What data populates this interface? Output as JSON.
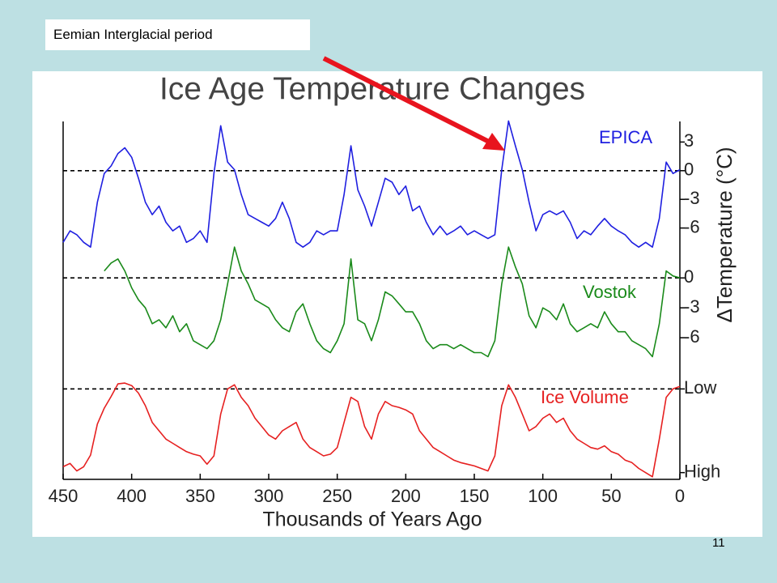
{
  "annotation": "Eemian Interglacial period",
  "page_number": "11",
  "chart_data": [
    {
      "type": "line",
      "title": "Ice Age Temperature Changes",
      "ylabel": "ΔTemperature (°C)",
      "x": [
        450,
        445,
        440,
        435,
        430,
        425,
        420,
        415,
        410,
        405,
        400,
        395,
        390,
        385,
        380,
        375,
        370,
        365,
        360,
        355,
        350,
        345,
        340,
        335,
        330,
        325,
        320,
        315,
        310,
        305,
        300,
        295,
        290,
        285,
        280,
        275,
        270,
        265,
        260,
        255,
        250,
        245,
        240,
        235,
        230,
        225,
        220,
        215,
        210,
        205,
        200,
        195,
        190,
        185,
        180,
        175,
        170,
        165,
        160,
        155,
        150,
        145,
        140,
        135,
        130,
        125,
        120,
        115,
        110,
        105,
        100,
        95,
        90,
        85,
        80,
        75,
        70,
        65,
        60,
        55,
        50,
        45,
        40,
        35,
        30,
        25,
        20,
        15,
        10,
        5,
        0
      ],
      "xlim": [
        450,
        0
      ],
      "ylim": [
        -9,
        6
      ],
      "yticks": [
        3,
        0,
        -3,
        -6
      ],
      "reference_line": 0,
      "series": [
        {
          "name": "EPICA",
          "color": "#1f1fe0",
          "values": [
            -7.5,
            -6.3,
            -6.7,
            -7.5,
            -8,
            -3.3,
            -0.3,
            0.5,
            1.8,
            2.4,
            1.4,
            -0.8,
            -3.3,
            -4.6,
            -3.7,
            -5.4,
            -6.3,
            -5.8,
            -7.5,
            -7.1,
            -6.3,
            -7.5,
            -0.3,
            4.7,
            0.9,
            0.1,
            -2.5,
            -4.6,
            -5,
            -5.4,
            -5.8,
            -5,
            -3.3,
            -5,
            -7.5,
            -8,
            -7.5,
            -6.3,
            -6.7,
            -6.3,
            -6.3,
            -2.5,
            2.6,
            -2,
            -3.7,
            -5.8,
            -3.3,
            -0.8,
            -1.2,
            -2.5,
            -1.6,
            -4.2,
            -3.7,
            -5.4,
            -6.7,
            -5.8,
            -6.7,
            -6.3,
            -5.8,
            -6.7,
            -6.3,
            -6.7,
            -7.1,
            -6.7,
            0.1,
            5.2,
            2.6,
            0.1,
            -3.3,
            -6.3,
            -4.6,
            -4.2,
            -4.6,
            -4.2,
            -5.4,
            -7.1,
            -6.3,
            -6.7,
            -5.8,
            -5,
            -5.8,
            -6.3,
            -6.7,
            -7.5,
            -8,
            -7.5,
            -8,
            -5,
            0.9,
            -0.3,
            0.1
          ]
        }
      ]
    },
    {
      "type": "line",
      "x": [
        450,
        445,
        440,
        435,
        430,
        425,
        420,
        415,
        410,
        405,
        400,
        395,
        390,
        385,
        380,
        375,
        370,
        365,
        360,
        355,
        350,
        345,
        340,
        335,
        330,
        325,
        320,
        315,
        310,
        305,
        300,
        295,
        290,
        285,
        280,
        275,
        270,
        265,
        260,
        255,
        250,
        245,
        240,
        235,
        230,
        225,
        220,
        215,
        210,
        205,
        200,
        195,
        190,
        185,
        180,
        175,
        170,
        165,
        160,
        155,
        150,
        145,
        140,
        135,
        130,
        125,
        120,
        115,
        110,
        105,
        100,
        95,
        90,
        85,
        80,
        75,
        70,
        65,
        60,
        55,
        50,
        45,
        40,
        35,
        30,
        25,
        20,
        15,
        10,
        5,
        0
      ],
      "xlim": [
        450,
        0
      ],
      "ylim": [
        -9,
        4
      ],
      "yticks": [
        0,
        -3,
        -6
      ],
      "reference_line": 0,
      "series": [
        {
          "name": "Vostok",
          "color": "#1a8a1a",
          "values": [
            null,
            null,
            null,
            null,
            null,
            null,
            0.7,
            1.5,
            1.9,
            0.7,
            -1,
            -2.2,
            -3,
            -4.6,
            -4.2,
            -5,
            -3.8,
            -5.4,
            -4.6,
            -6.3,
            -6.7,
            -7.1,
            -6.3,
            -4.2,
            -0.6,
            3.1,
            0.7,
            -0.6,
            -2.2,
            -2.6,
            -3,
            -4.2,
            -5,
            -5.4,
            -3.4,
            -2.6,
            -4.6,
            -6.3,
            -7.1,
            -7.5,
            -6.3,
            -4.6,
            1.9,
            -4.2,
            -4.6,
            -6.3,
            -4.2,
            -1.4,
            -1.8,
            -2.6,
            -3.4,
            -3.4,
            -4.6,
            -6.3,
            -7.1,
            -6.7,
            -6.7,
            -7.1,
            -6.7,
            -7.1,
            -7.5,
            -7.5,
            -7.9,
            -6.3,
            -0.6,
            3.1,
            1.1,
            -0.6,
            -3.8,
            -5,
            -3,
            -3.4,
            -4.2,
            -2.6,
            -4.6,
            -5.4,
            -5,
            -4.6,
            -5,
            -3.4,
            -4.6,
            -5.4,
            -5.4,
            -6.3,
            -6.7,
            -7.1,
            -7.9,
            -4.6,
            0.7,
            0.2,
            0
          ]
        }
      ]
    },
    {
      "type": "line",
      "xlabel": "Thousands of Years Ago",
      "x": [
        450,
        445,
        440,
        435,
        430,
        425,
        420,
        415,
        410,
        405,
        400,
        395,
        390,
        385,
        380,
        375,
        370,
        365,
        360,
        355,
        350,
        345,
        340,
        335,
        330,
        325,
        320,
        315,
        310,
        305,
        300,
        295,
        290,
        285,
        280,
        275,
        270,
        265,
        260,
        255,
        250,
        245,
        240,
        235,
        230,
        225,
        220,
        215,
        210,
        205,
        200,
        195,
        190,
        185,
        180,
        175,
        170,
        165,
        160,
        155,
        150,
        145,
        140,
        135,
        130,
        125,
        120,
        115,
        110,
        105,
        100,
        95,
        90,
        85,
        80,
        75,
        70,
        65,
        60,
        55,
        50,
        45,
        40,
        35,
        30,
        25,
        20,
        15,
        10,
        5,
        0
      ],
      "xlim": [
        450,
        0
      ],
      "xticks": [
        450,
        400,
        350,
        300,
        250,
        200,
        150,
        100,
        50,
        0
      ],
      "ylim": [
        110,
        -10
      ],
      "yticks": [
        {
          "value": 0,
          "label": "Low"
        },
        {
          "value": 100,
          "label": "High"
        }
      ],
      "reference_line": 0,
      "series": [
        {
          "name": "Ice Volume",
          "color": "#e62020",
          "values": [
            93,
            89,
            98,
            93,
            79,
            42,
            23,
            9,
            -6,
            -7,
            -4,
            5,
            20,
            40,
            50,
            60,
            65,
            70,
            75,
            78,
            80,
            90,
            80,
            30,
            0,
            -5,
            10,
            20,
            35,
            45,
            55,
            60,
            50,
            45,
            40,
            60,
            70,
            75,
            80,
            78,
            70,
            40,
            10,
            15,
            45,
            60,
            30,
            15,
            20,
            22,
            25,
            30,
            50,
            60,
            70,
            75,
            80,
            85,
            88,
            90,
            92,
            95,
            98,
            80,
            20,
            -5,
            10,
            30,
            50,
            45,
            35,
            30,
            40,
            35,
            50,
            60,
            65,
            70,
            72,
            68,
            75,
            78,
            85,
            88,
            95,
            100,
            105,
            60,
            10,
            0,
            -3
          ]
        }
      ]
    }
  ]
}
